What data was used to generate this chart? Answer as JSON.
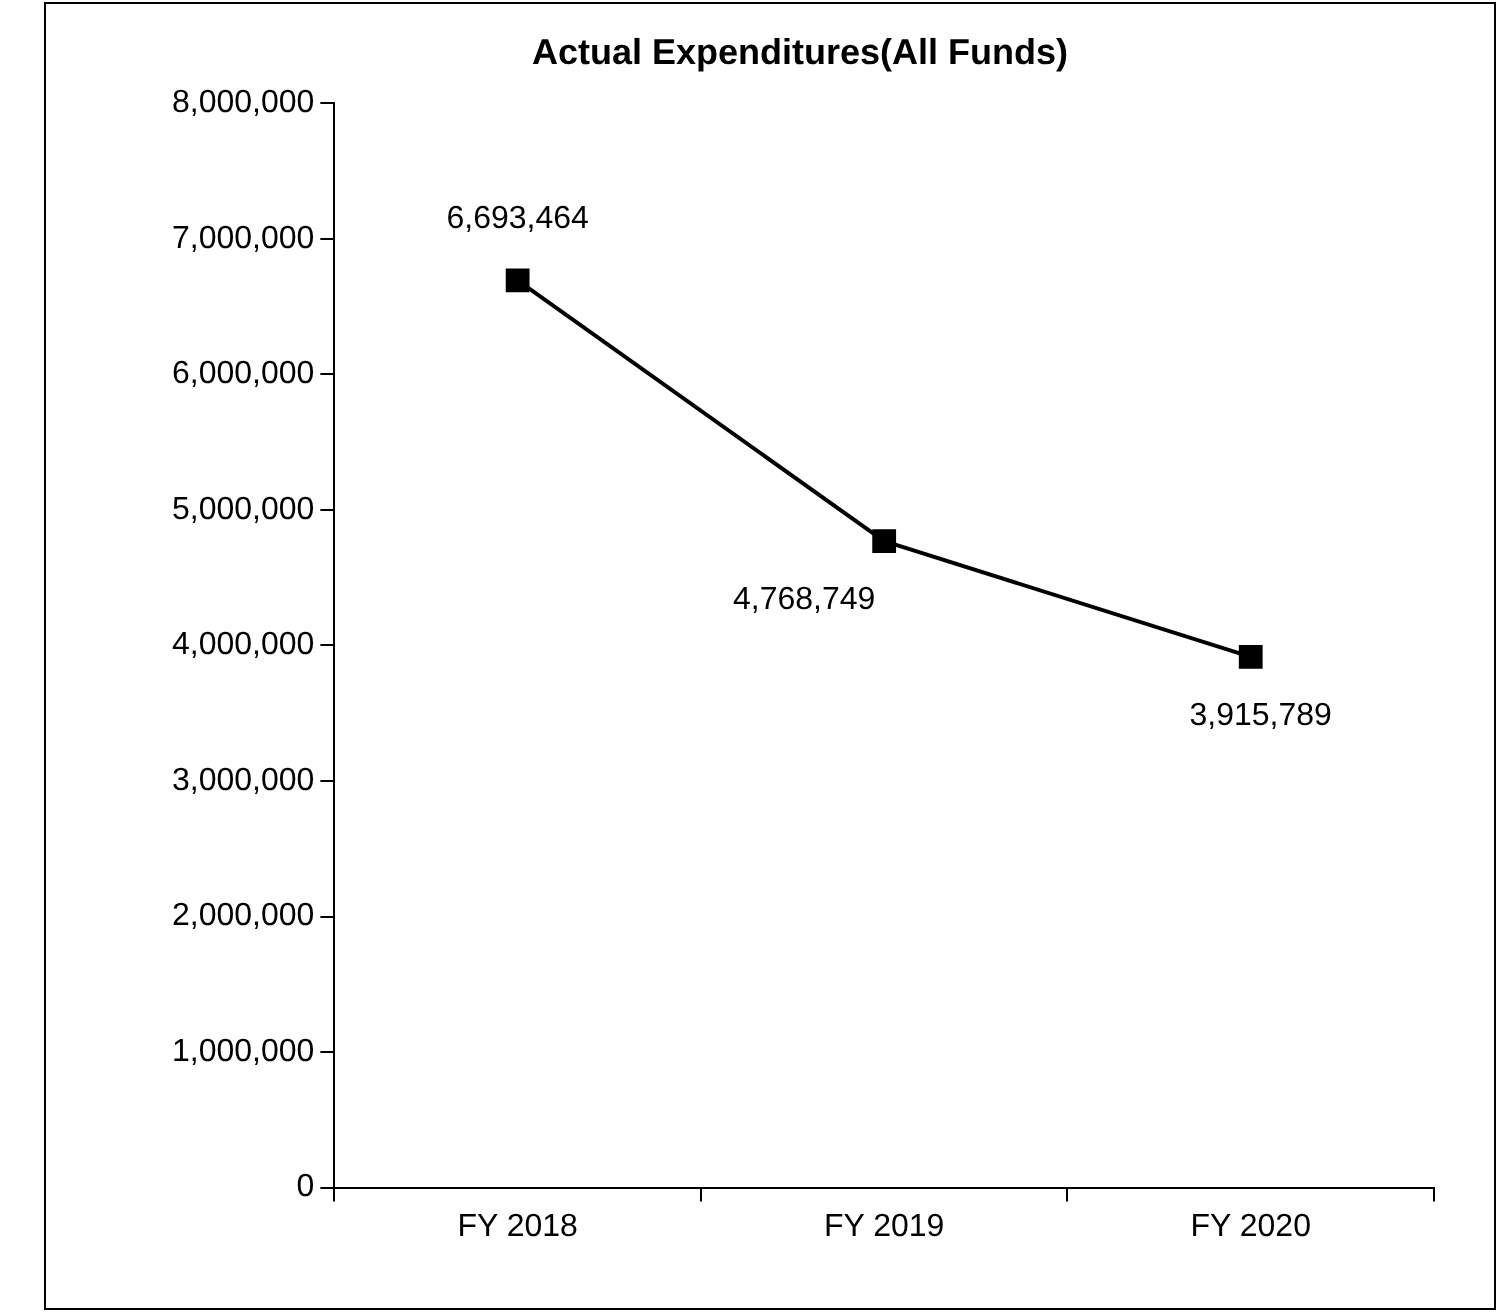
{
  "chart_data": {
    "type": "line",
    "title": "Actual Expenditures(All Funds)",
    "categories": [
      "FY 2018",
      "FY 2019",
      "FY 2020"
    ],
    "series": [
      {
        "color": "#000000",
        "values": [
          6693464,
          4768749,
          3915789
        ],
        "value_labels": [
          "6,693,464",
          "4,768,749",
          "3,915,789"
        ]
      }
    ],
    "ylim": [
      0,
      8000000
    ],
    "yticks": [
      0,
      {
        "value": 1000000,
        "label": "1,000,000"
      },
      {
        "value": 2000000,
        "label": "2,000,000"
      },
      {
        "value": 3000000,
        "label": "3,000,000"
      },
      {
        "value": 4000000,
        "label": "4,000,000"
      },
      {
        "value": 5000000,
        "label": "5,000,000"
      },
      {
        "value": 6000000,
        "label": "6,000,000"
      },
      {
        "value": 7000000,
        "label": "7,000,000"
      },
      {
        "value": 8000000,
        "label": "8,000,000"
      }
    ],
    "marker": "square",
    "line_style": "solid",
    "grid": false,
    "legend": false
  }
}
